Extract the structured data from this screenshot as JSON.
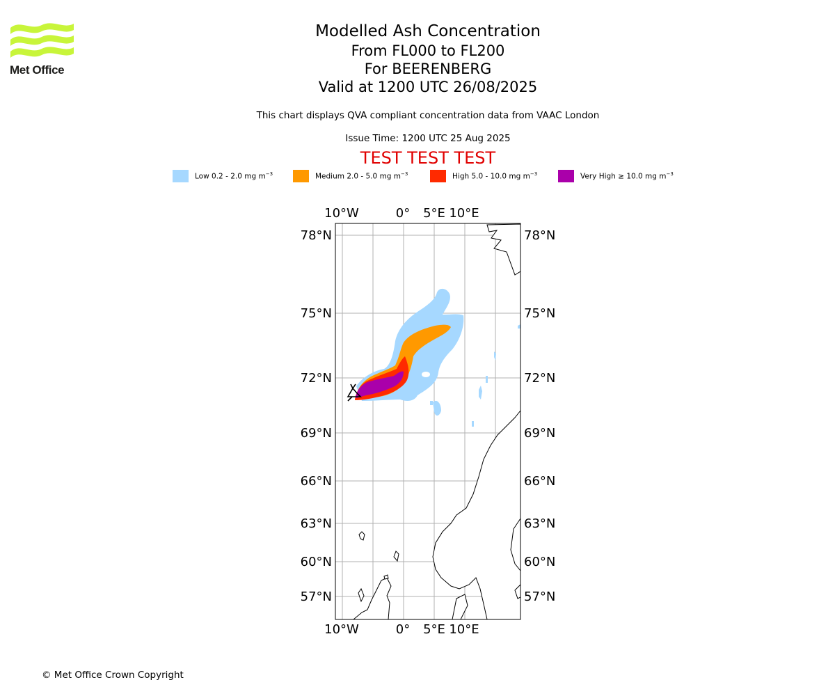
{
  "logo": {
    "text": "Met Office",
    "wave_color": "#c8f53a"
  },
  "title": {
    "main": "Modelled Ash Concentration",
    "levels": "From FL000 to FL200",
    "volcano": "For BEERENBERG",
    "valid": "Valid at 1200 UTC 26/08/2025"
  },
  "notes": {
    "compliance": "This chart displays QVA compliant concentration data from VAAC London",
    "issue_time": "Issue Time: 1200 UTC 25 Aug 2025"
  },
  "test_banner": {
    "text": "TEST TEST TEST",
    "color": "#e00000"
  },
  "legend": [
    {
      "name": "Low",
      "range": "0.2 - 2.0",
      "unit": "mg m",
      "exp": "−3",
      "color": "#a6d8ff"
    },
    {
      "name": "Medium",
      "range": "2.0 - 5.0",
      "unit": "mg m",
      "exp": "−3",
      "color": "#ff9900"
    },
    {
      "name": "High",
      "range": "5.0 - 10.0",
      "unit": "mg m",
      "exp": "−3",
      "color": "#ff2a00"
    },
    {
      "name": "Very High",
      "range": "≥ 10.0",
      "unit": "mg m",
      "exp": "−3",
      "color": "#aa00aa"
    }
  ],
  "map": {
    "lon_labels": [
      "10°W",
      "0°",
      "5°E",
      "10°E"
    ],
    "lat_labels": [
      "78°N",
      "75°N",
      "72°N",
      "69°N",
      "66°N",
      "63°N",
      "60°N",
      "57°N"
    ],
    "volcano_marker": "volcano-icon"
  },
  "footer": {
    "copyright": "© Met Office Crown Copyright"
  }
}
